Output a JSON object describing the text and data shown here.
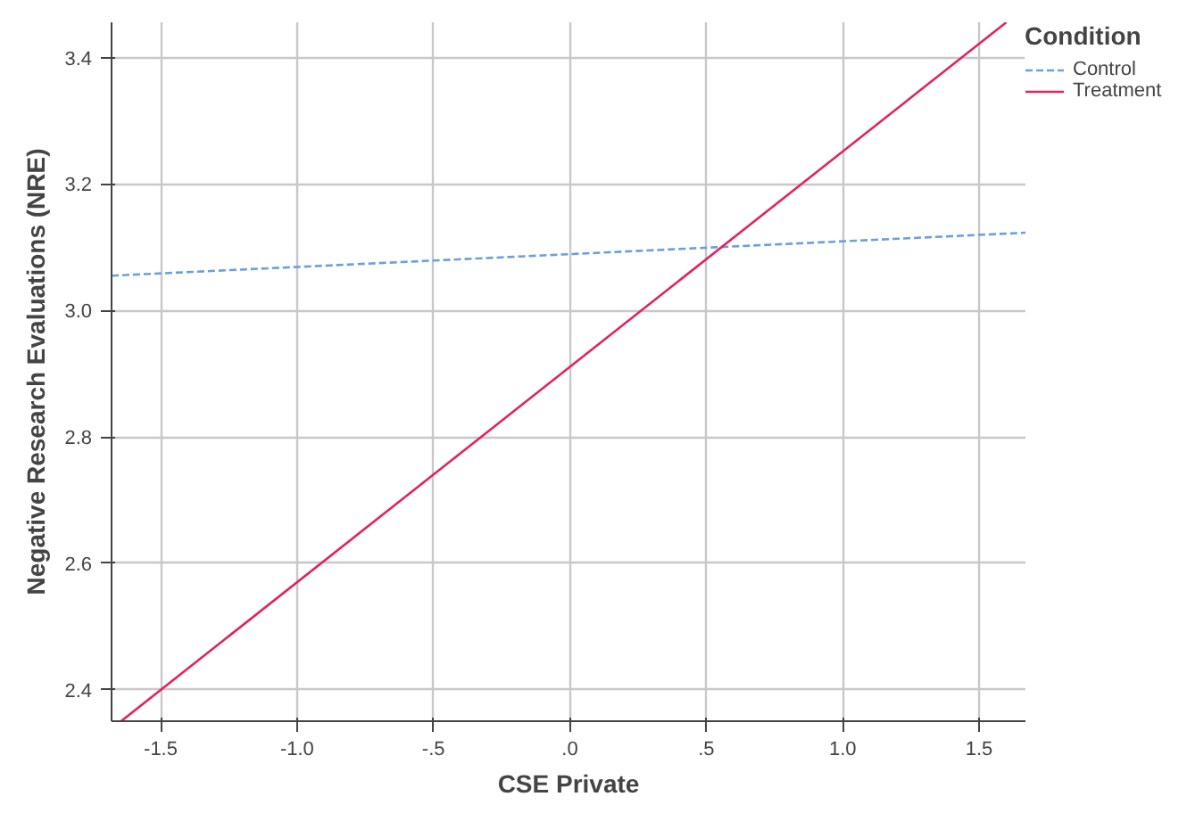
{
  "chart_data": {
    "type": "line",
    "xlabel": "CSE Private",
    "ylabel": "Negative Research Evaluations (NRE)",
    "legend_title": "Condition",
    "series": [
      {
        "name": "Control",
        "color": "#6a9fe0",
        "line_style": "dashed",
        "x": [
          -1.68,
          1.67
        ],
        "values": [
          3.055,
          3.123
        ]
      },
      {
        "name": "Treatment",
        "color": "#e0245e",
        "line_style": "solid",
        "x": [
          -1.645,
          1.6
        ],
        "values": [
          2.35,
          3.456
        ]
      }
    ],
    "xlim": [
      -1.68,
      1.67
    ],
    "ylim": [
      2.35,
      3.456
    ],
    "xticks": [
      {
        "value": -1.5,
        "label": "-1.5"
      },
      {
        "value": -1.0,
        "label": "-1.0"
      },
      {
        "value": -0.5,
        "label": "-.5"
      },
      {
        "value": 0,
        "label": ".0"
      },
      {
        "value": 0.5,
        "label": ".5"
      },
      {
        "value": 1.0,
        "label": "1.0"
      },
      {
        "value": 1.5,
        "label": "1.5"
      }
    ],
    "yticks": [
      {
        "value": 2.4,
        "label": "2.4"
      },
      {
        "value": 2.6,
        "label": "2.6"
      },
      {
        "value": 2.8,
        "label": "2.8"
      },
      {
        "value": 3.0,
        "label": "3.0"
      },
      {
        "value": 3.2,
        "label": "3.2"
      },
      {
        "value": 3.4,
        "label": "3.4"
      }
    ],
    "grid": true,
    "legend": "top right",
    "marker": "none"
  }
}
